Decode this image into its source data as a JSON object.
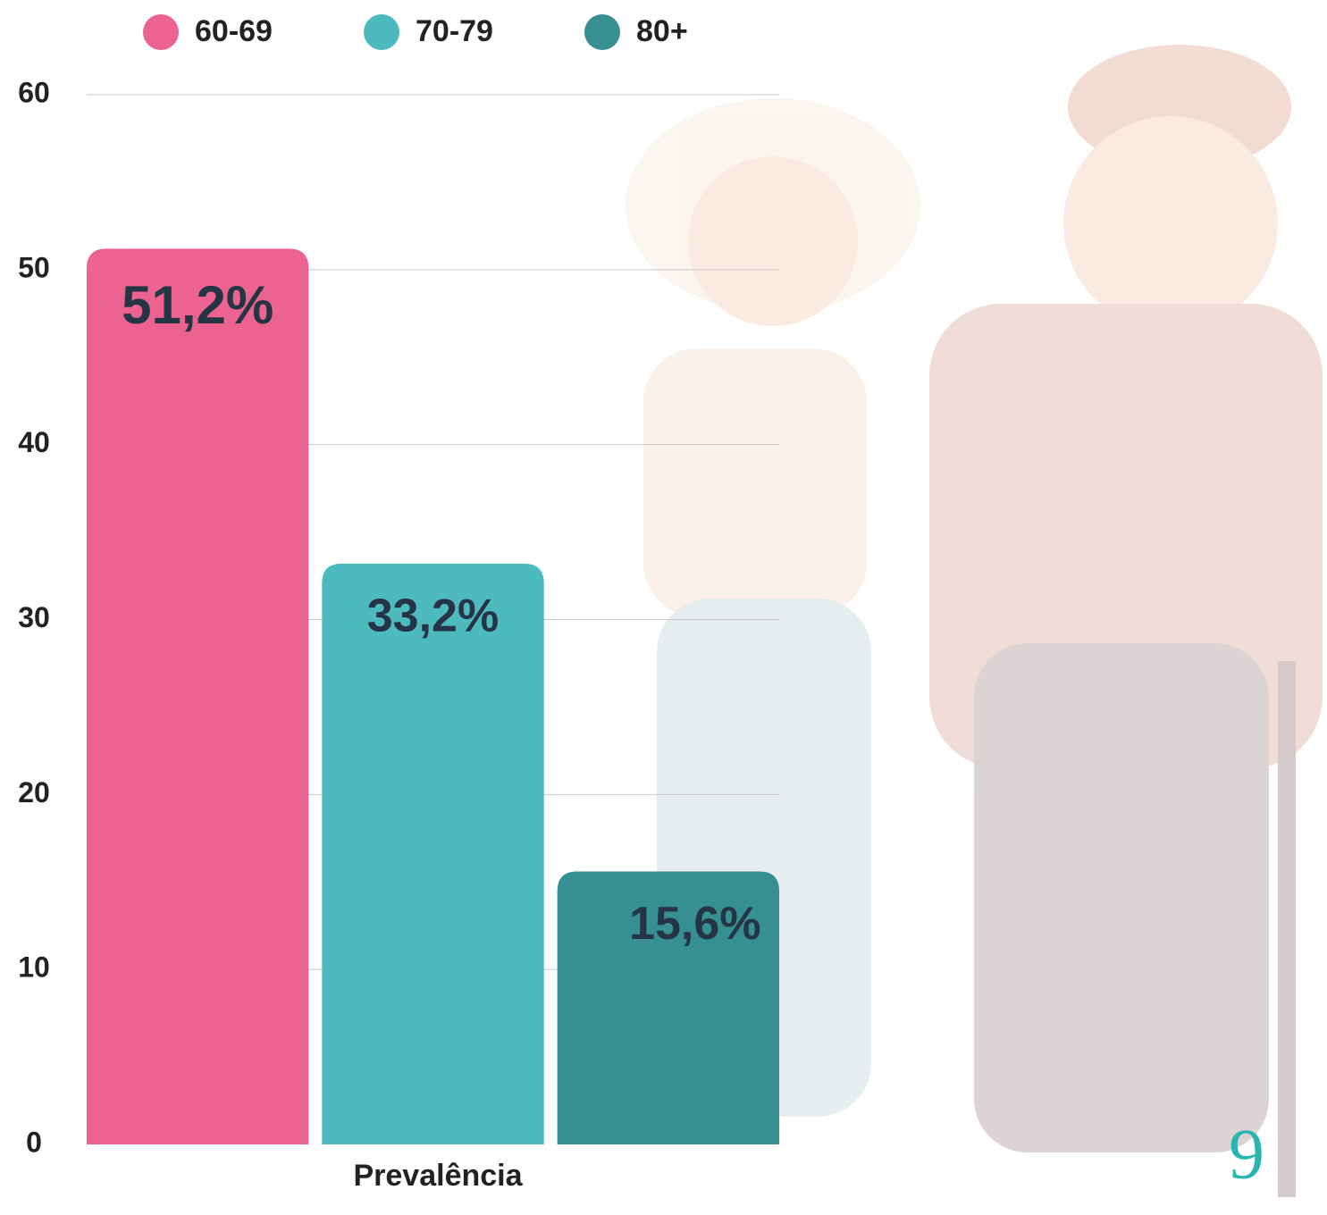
{
  "chart_data": {
    "type": "bar",
    "categories": [
      "Prevalência"
    ],
    "series": [
      {
        "name": "60-69",
        "color": "#ec6390",
        "values": [
          51.2
        ],
        "value_labels": [
          "51,2%"
        ]
      },
      {
        "name": "70-79",
        "color": "#4dbabf",
        "values": [
          33.2
        ],
        "value_labels": [
          "33,2%"
        ]
      },
      {
        "name": "80+",
        "color": "#368f93",
        "values": [
          15.6
        ],
        "value_labels": [
          "15,6%"
        ]
      }
    ],
    "ylim": [
      0,
      60
    ],
    "yticks": [
      0,
      10,
      20,
      30,
      40,
      50,
      60
    ],
    "grid": true,
    "legend": "top"
  },
  "logo": "9"
}
